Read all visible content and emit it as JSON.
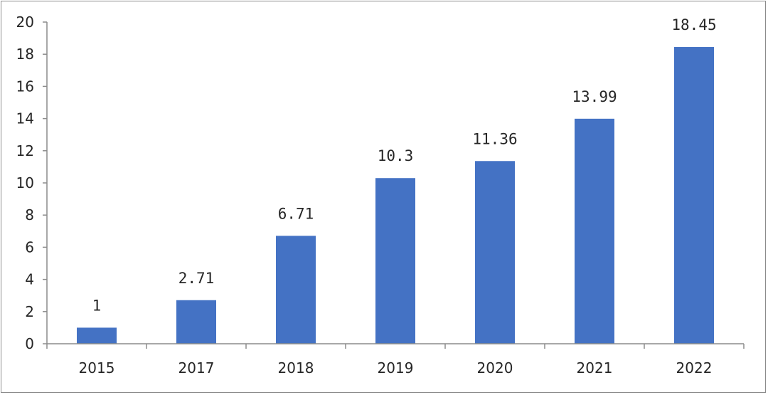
{
  "chart_data": {
    "type": "bar",
    "title": "",
    "xlabel": "",
    "ylabel": "",
    "categories": [
      "2015",
      "2017",
      "2018",
      "2019",
      "2020",
      "2021",
      "2022"
    ],
    "values": [
      1,
      2.71,
      6.71,
      10.3,
      11.36,
      13.99,
      18.45
    ],
    "data_labels": [
      "1",
      "2.71",
      "6.71",
      "10.3",
      "11.36",
      "13.99",
      "18.45"
    ],
    "ylim": [
      0,
      20
    ],
    "yticks": [
      "0",
      "2",
      "4",
      "6",
      "8",
      "10",
      "12",
      "14",
      "16",
      "18",
      "20"
    ],
    "grid": false,
    "legend": "none",
    "bar_color": "#4472c4"
  }
}
